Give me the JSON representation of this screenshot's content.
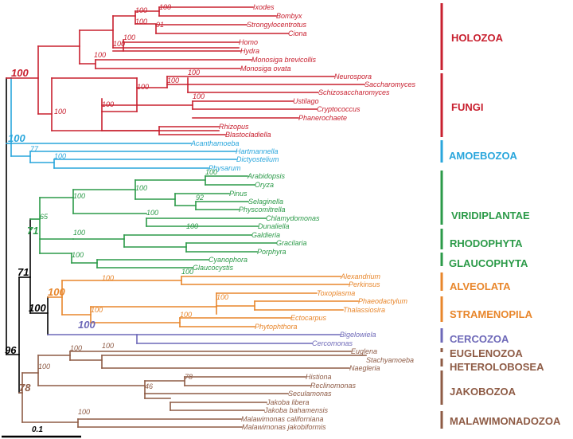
{
  "colors": {
    "holozoa": "#c8202f",
    "amoebozoa": "#29a6dc",
    "viridi": "#2b9a48",
    "alveo": "#e8862b",
    "cerco": "#6d68b8",
    "brown": "#8e5b45",
    "black": "#000000"
  },
  "scale_bar": {
    "label": "0.1"
  },
  "taxa": [
    {
      "id": "ixodes",
      "label": "Ixodes",
      "clade": "holozoa"
    },
    {
      "id": "bombyx",
      "label": "Bombyx",
      "clade": "holozoa"
    },
    {
      "id": "strongylocentrotus",
      "label": "Strongylocentrotus",
      "clade": "holozoa"
    },
    {
      "id": "ciona",
      "label": "Ciona",
      "clade": "holozoa"
    },
    {
      "id": "homo",
      "label": "Homo",
      "clade": "holozoa"
    },
    {
      "id": "hydra",
      "label": "Hydra",
      "clade": "holozoa"
    },
    {
      "id": "monosiga-brevicollis",
      "label": "Monosiga brevicollis",
      "clade": "holozoa"
    },
    {
      "id": "monosiga-ovata",
      "label": "Monosiga ovata",
      "clade": "holozoa"
    },
    {
      "id": "neurospora",
      "label": "Neurospora",
      "clade": "holozoa"
    },
    {
      "id": "saccharomyces",
      "label": "Saccharomyces",
      "clade": "holozoa"
    },
    {
      "id": "schizosaccharomyces",
      "label": "Schizosaccharomyces",
      "clade": "holozoa"
    },
    {
      "id": "ustilago",
      "label": "Ustilago",
      "clade": "holozoa"
    },
    {
      "id": "cryptococcus",
      "label": "Cryptococcus",
      "clade": "holozoa"
    },
    {
      "id": "phanerochaete",
      "label": "Phanerochaete",
      "clade": "holozoa"
    },
    {
      "id": "rhizopus",
      "label": "Rhizopus",
      "clade": "holozoa"
    },
    {
      "id": "blastocladiella",
      "label": "Blastocladiella",
      "clade": "holozoa"
    },
    {
      "id": "acanthamoeba",
      "label": "Acanthamoeba",
      "clade": "amoebozoa"
    },
    {
      "id": "hartmannella",
      "label": "Hartmannella",
      "clade": "amoebozoa"
    },
    {
      "id": "dictyostelium",
      "label": "Dictyostelium",
      "clade": "amoebozoa"
    },
    {
      "id": "physarum",
      "label": "Physarum",
      "clade": "amoebozoa"
    },
    {
      "id": "arabidopsis",
      "label": "Arabidopsis",
      "clade": "viridi"
    },
    {
      "id": "oryza",
      "label": "Oryza",
      "clade": "viridi"
    },
    {
      "id": "pinus",
      "label": "Pinus",
      "clade": "viridi"
    },
    {
      "id": "selaginella",
      "label": "Selaginella",
      "clade": "viridi"
    },
    {
      "id": "physcomitrella",
      "label": "Physcomitrella",
      "clade": "viridi"
    },
    {
      "id": "chlamydomonas",
      "label": "Chlamydomonas",
      "clade": "viridi"
    },
    {
      "id": "dunaliella",
      "label": "Dunaliella",
      "clade": "viridi"
    },
    {
      "id": "galdieria",
      "label": "Galdieria",
      "clade": "viridi"
    },
    {
      "id": "gracilaria",
      "label": "Gracilaria",
      "clade": "viridi"
    },
    {
      "id": "porphyra",
      "label": "Porphyra",
      "clade": "viridi"
    },
    {
      "id": "cyanophora",
      "label": "Cyanophora",
      "clade": "viridi"
    },
    {
      "id": "glaucocystis",
      "label": "Glaucocystis",
      "clade": "viridi"
    },
    {
      "id": "alexandrium",
      "label": "Alexandrium",
      "clade": "alveo"
    },
    {
      "id": "perkinsus",
      "label": "Perkinsus",
      "clade": "alveo"
    },
    {
      "id": "toxoplasma",
      "label": "Toxoplasma",
      "clade": "alveo"
    },
    {
      "id": "phaeodactylum",
      "label": "Phaeodactylum",
      "clade": "alveo"
    },
    {
      "id": "thalassiosira",
      "label": "Thalassiosira",
      "clade": "alveo"
    },
    {
      "id": "ectocarpus",
      "label": "Ectocarpus",
      "clade": "alveo"
    },
    {
      "id": "phytophthora",
      "label": "Phytophthora",
      "clade": "alveo"
    },
    {
      "id": "bigelowiela",
      "label": "Bigelowiela",
      "clade": "cerco"
    },
    {
      "id": "cercomonas",
      "label": "Cercomonas",
      "clade": "cerco"
    },
    {
      "id": "euglena",
      "label": "Euglena",
      "clade": "brown"
    },
    {
      "id": "stachyamoeba",
      "label": "Stachyamoeba",
      "clade": "brown"
    },
    {
      "id": "naegleria",
      "label": "Naegleria",
      "clade": "brown"
    },
    {
      "id": "histiona",
      "label": "Histiona",
      "clade": "brown"
    },
    {
      "id": "reclinomonas",
      "label": "Reclinomonas",
      "clade": "brown"
    },
    {
      "id": "seculamonas",
      "label": "Seculamonas",
      "clade": "brown"
    },
    {
      "id": "jakoba-libera",
      "label": "Jakoba libera",
      "clade": "brown"
    },
    {
      "id": "jakoba-bahamensis",
      "label": "Jakoba bahamensis",
      "clade": "brown"
    },
    {
      "id": "malawimonas-californiana",
      "label": "Malawimonas californiana",
      "clade": "brown"
    },
    {
      "id": "malawimonas-jakobiformis",
      "label": "Malawimonas jakobiformis",
      "clade": "brown"
    }
  ],
  "groups": [
    {
      "id": "holozoa",
      "label": "HOLOZOA",
      "clade": "holozoa"
    },
    {
      "id": "fungi",
      "label": "FUNGI",
      "clade": "holozoa"
    },
    {
      "id": "amoebozoa",
      "label": "AMOEBOZOA",
      "clade": "amoebozoa"
    },
    {
      "id": "viridiplantae",
      "label": "VIRIDIPLANTAE",
      "clade": "viridi"
    },
    {
      "id": "rhodophyta",
      "label": "RHODOPHYTA",
      "clade": "viridi"
    },
    {
      "id": "glaucophyta",
      "label": "GLAUCOPHYTA",
      "clade": "viridi"
    },
    {
      "id": "alveolata",
      "label": "ALVEOLATA",
      "clade": "alveo"
    },
    {
      "id": "stramenopila",
      "label": "STRAMENOPILA",
      "clade": "alveo"
    },
    {
      "id": "cercozoa",
      "label": "CERCOZOA",
      "clade": "cerco"
    },
    {
      "id": "euglenozoa",
      "label": "EUGLENOZOA",
      "clade": "brown"
    },
    {
      "id": "heterolobosea",
      "label": "HETEROLOBOSEA",
      "clade": "brown"
    },
    {
      "id": "jakobozoa",
      "label": "JAKOBOZOA",
      "clade": "brown"
    },
    {
      "id": "malawimonadozoa",
      "label": "MALAWIMONADOZOA",
      "clade": "brown"
    }
  ],
  "bootstraps": [
    {
      "id": "b1",
      "label": "100",
      "clade": "holozoa"
    },
    {
      "id": "b2",
      "label": "100",
      "clade": "holozoa"
    },
    {
      "id": "b3",
      "label": "100",
      "clade": "holozoa"
    },
    {
      "id": "b4",
      "label": "91",
      "clade": "holozoa"
    },
    {
      "id": "b5",
      "label": "100",
      "clade": "holozoa"
    },
    {
      "id": "b6",
      "label": "100",
      "clade": "holozoa"
    },
    {
      "id": "b7",
      "label": "100",
      "clade": "holozoa"
    },
    {
      "id": "b8",
      "label": "100",
      "clade": "holozoa"
    },
    {
      "id": "b9",
      "label": "100",
      "clade": "holozoa"
    },
    {
      "id": "b10",
      "label": "100",
      "clade": "holozoa"
    },
    {
      "id": "b11",
      "label": "100",
      "clade": "holozoa"
    },
    {
      "id": "b12",
      "label": "100",
      "clade": "holozoa"
    },
    {
      "id": "b13",
      "label": "100",
      "clade": "holozoa"
    },
    {
      "id": "b14",
      "label": "77",
      "clade": "amoebozoa"
    },
    {
      "id": "b15",
      "label": "100",
      "clade": "amoebozoa"
    },
    {
      "id": "b16",
      "label": "100",
      "clade": "viridi"
    },
    {
      "id": "b17",
      "label": "100",
      "clade": "viridi"
    },
    {
      "id": "b18",
      "label": "92",
      "clade": "viridi"
    },
    {
      "id": "b19",
      "label": "100",
      "clade": "viridi"
    },
    {
      "id": "b20",
      "label": "100",
      "clade": "viridi"
    },
    {
      "id": "b21",
      "label": "100",
      "clade": "viridi"
    },
    {
      "id": "b22",
      "label": "65",
      "clade": "viridi"
    },
    {
      "id": "b23",
      "label": "100",
      "clade": "viridi"
    },
    {
      "id": "b24",
      "label": "100",
      "clade": "viridi"
    },
    {
      "id": "b25",
      "label": "100",
      "clade": "viridi"
    },
    {
      "id": "b26",
      "label": "100",
      "clade": "alveo"
    },
    {
      "id": "b27",
      "label": "100",
      "clade": "alveo"
    },
    {
      "id": "b28",
      "label": "100",
      "clade": "alveo"
    },
    {
      "id": "b29",
      "label": "100",
      "clade": "alveo"
    },
    {
      "id": "b30",
      "label": "100",
      "clade": "brown"
    },
    {
      "id": "b31",
      "label": "100",
      "clade": "brown"
    },
    {
      "id": "b32",
      "label": "100",
      "clade": "brown"
    },
    {
      "id": "b33",
      "label": "78",
      "clade": "brown"
    },
    {
      "id": "b34",
      "label": "46",
      "clade": "brown"
    },
    {
      "id": "b35",
      "label": "100",
      "clade": "brown"
    },
    {
      "id": "b36",
      "label": "100",
      "clade": "brown"
    }
  ],
  "major_bootstraps": [
    {
      "id": "m1",
      "label": "100",
      "clade": "holozoa"
    },
    {
      "id": "m2",
      "label": "100",
      "clade": "amoebozoa"
    },
    {
      "id": "m3",
      "label": "71",
      "clade": "viridi"
    },
    {
      "id": "m4",
      "label": "71",
      "clade": "black"
    },
    {
      "id": "m5",
      "label": "100",
      "clade": "alveo"
    },
    {
      "id": "m6",
      "label": "100",
      "clade": "black"
    },
    {
      "id": "m7",
      "label": "100",
      "clade": "cerco"
    },
    {
      "id": "m8",
      "label": "96",
      "clade": "black"
    },
    {
      "id": "m9",
      "label": "78",
      "clade": "brown"
    }
  ]
}
